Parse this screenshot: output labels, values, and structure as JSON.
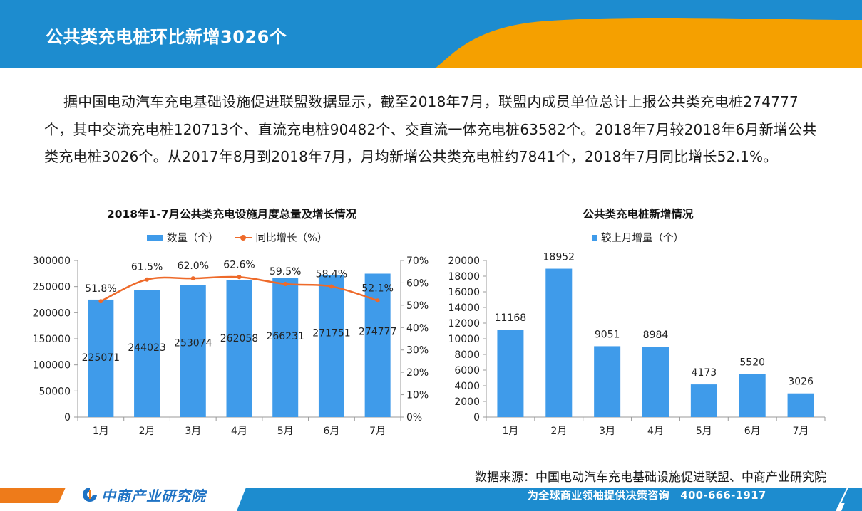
{
  "header": {
    "title": "公共类充电桩环比新增3026个"
  },
  "intro": {
    "text": "据中国电动汽车充电基础设施促进联盟数据显示，截至2018年7月，联盟内成员单位总计上报公共类充电桩274777个，其中交流充电桩120713个、直流充电桩90482个、交直流一体充电桩63582个。2018年7月较2018年6月新增公共类充电桩3026个。从2017年8月到2018年7月，月均新增公共类充电桩约7841个，2018年7月同比增长52.1%。"
  },
  "chart_data": [
    {
      "type": "bar",
      "title": "2018年1-7月公共类充电设施月度总量及增长情况",
      "categories": [
        "1月",
        "2月",
        "3月",
        "4月",
        "5月",
        "6月",
        "7月"
      ],
      "series": [
        {
          "name": "数量（个）",
          "type": "bar",
          "axis": "left",
          "values": [
            225071,
            244023,
            253074,
            262058,
            266231,
            271751,
            274777
          ],
          "color": "#3f9bea"
        },
        {
          "name": "同比增长（%）",
          "type": "line",
          "axis": "right",
          "values": [
            51.8,
            61.5,
            62.0,
            62.6,
            59.5,
            58.4,
            52.1
          ],
          "labels": [
            "51.8%",
            "61.5%",
            "62.0%",
            "62.6%",
            "59.5%",
            "58.4%",
            "52.1%"
          ],
          "color": "#ee6a2a"
        }
      ],
      "ylim": [
        0,
        300000
      ],
      "yticks": [
        "0",
        "50000",
        "100000",
        "150000",
        "200000",
        "250000",
        "300000"
      ],
      "y2lim": [
        0,
        70
      ],
      "y2ticks": [
        "0%",
        "10%",
        "20%",
        "30%",
        "40%",
        "50%",
        "60%",
        "70%"
      ],
      "legend": "top",
      "grid": false
    },
    {
      "type": "bar",
      "title": "公共类充电桩新增情况",
      "categories": [
        "1月",
        "2月",
        "3月",
        "4月",
        "5月",
        "6月",
        "7月"
      ],
      "series": [
        {
          "name": "较上月增量（个）",
          "values": [
            11168,
            18952,
            9051,
            8984,
            4173,
            5520,
            3026
          ],
          "color": "#3f9bea"
        }
      ],
      "ylim": [
        0,
        20000
      ],
      "yticks": [
        "0",
        "2000",
        "4000",
        "6000",
        "8000",
        "10000",
        "12000",
        "14000",
        "16000",
        "18000",
        "20000"
      ],
      "legend": "top",
      "grid": false
    }
  ],
  "source": {
    "text": "数据来源：中国电动汽车充电基础设施促进联盟、中商产业研究院"
  },
  "footer": {
    "brand": "中商产业研究院",
    "slogan": "为全球商业领袖提供决策咨询　400-666-1917"
  },
  "colors": {
    "primary_blue": "#1d8ccf",
    "accent_orange": "#f5a000",
    "bar_blue": "#3f9bea",
    "line_orange": "#ee6a2a"
  }
}
